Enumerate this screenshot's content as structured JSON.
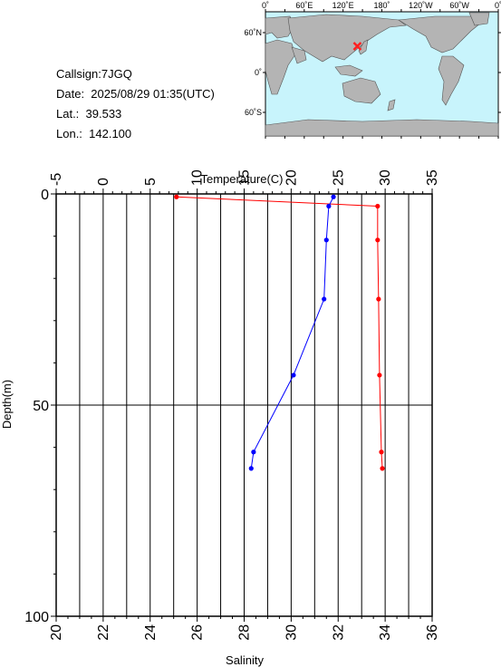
{
  "station": {
    "callsign": "Callsign:7JGQ",
    "date": "Date:  2025/08/29 01:35(UTC)",
    "lat": "Lat.:  39.533",
    "lon": "Lon.:  142.100"
  },
  "map": {
    "lon_ticks": [
      "0˚",
      "60˚E",
      "120˚E",
      "180˚",
      "120˚W",
      "60˚W",
      "0˚"
    ],
    "lat_ticks": [
      "60˚N",
      "0˚",
      "60˚S"
    ],
    "marker": {
      "lat": 39.533,
      "lon": 142.1
    },
    "colors": {
      "ocean": "#c8f4fc",
      "land": "#b4b4b4",
      "marker": "#ff2020"
    }
  },
  "chart_data": {
    "type": "line",
    "ylabel": "Depth(m)",
    "ylim": [
      100,
      0
    ],
    "y_ticks": [
      0,
      50,
      100
    ],
    "top_axis": {
      "label": "Temperature(C)",
      "range": [
        -5,
        35
      ],
      "ticks": [
        -5,
        0,
        5,
        10,
        15,
        20,
        25,
        30,
        35
      ]
    },
    "bottom_axis": {
      "label": "Salinity",
      "range": [
        20,
        36
      ],
      "ticks": [
        20,
        22,
        24,
        26,
        28,
        30,
        32,
        34,
        36
      ]
    },
    "grid": true,
    "series": [
      {
        "quantity": "temperature",
        "axis": "top",
        "color": "#ff0000",
        "points": [
          [
            7.8,
            0.7
          ],
          [
            29.2,
            2.9
          ],
          [
            29.2,
            10.9
          ],
          [
            29.3,
            24.9
          ],
          [
            29.4,
            42.9
          ],
          [
            29.6,
            61.1
          ],
          [
            29.7,
            65.0
          ]
        ]
      },
      {
        "quantity": "salinity",
        "axis": "bottom",
        "color": "#0000ff",
        "points": [
          [
            31.8,
            0.7
          ],
          [
            31.6,
            2.9
          ],
          [
            31.5,
            10.9
          ],
          [
            31.4,
            24.9
          ],
          [
            30.1,
            42.9
          ],
          [
            28.4,
            61.1
          ],
          [
            28.3,
            65.0
          ]
        ]
      }
    ]
  }
}
